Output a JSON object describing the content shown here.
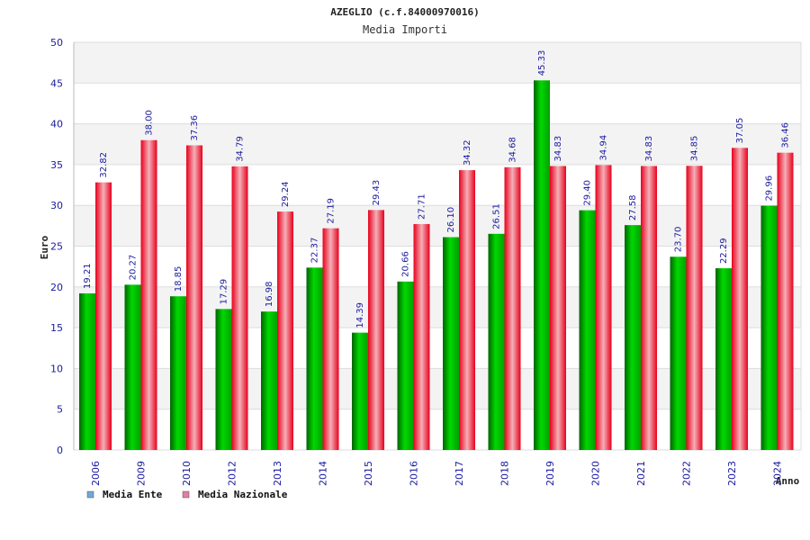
{
  "chart_data": {
    "type": "bar",
    "title": "AZEGLIO (c.f.84000970016)",
    "subtitle": "Media Importi",
    "ylabel": "Euro",
    "xlabel": "Anno",
    "ylim": [
      0,
      50
    ],
    "yticks": [
      0,
      5,
      10,
      15,
      20,
      25,
      30,
      35,
      40,
      45,
      50
    ],
    "grid": true,
    "legend_position": "bottom-left",
    "categories": [
      "2006",
      "2009",
      "2010",
      "2012",
      "2013",
      "2014",
      "2015",
      "2016",
      "2017",
      "2018",
      "2019",
      "2020",
      "2021",
      "2022",
      "2023",
      "2024"
    ],
    "series": [
      {
        "name": "Media Ente",
        "color": "#00c000",
        "legend_color": "#6fa8dc",
        "values": [
          19.21,
          20.27,
          18.85,
          17.29,
          16.98,
          22.37,
          14.39,
          20.66,
          26.1,
          26.51,
          45.33,
          29.4,
          27.58,
          23.7,
          22.29,
          29.96
        ],
        "labels": [
          "19.21",
          "20.27",
          "18.85",
          "17.29",
          "16.98",
          "22.37",
          "14.39",
          "20.66",
          "26.10",
          "26.51",
          "45.33",
          "29.40",
          "27.58",
          "23.70",
          "22.29",
          "29.96"
        ]
      },
      {
        "name": "Media Nazionale",
        "color": "#e8001c",
        "legend_color": "#e080a0",
        "values": [
          32.82,
          38.0,
          37.36,
          34.79,
          29.24,
          27.19,
          29.43,
          27.71,
          34.32,
          34.68,
          34.83,
          34.94,
          34.83,
          34.85,
          37.05,
          36.46
        ],
        "labels": [
          "32.82",
          "38.00",
          "37.36",
          "34.79",
          "29.24",
          "27.19",
          "29.43",
          "27.71",
          "34.32",
          "34.68",
          "34.83",
          "34.94",
          "34.83",
          "34.85",
          "37.05",
          "36.46"
        ]
      }
    ]
  }
}
